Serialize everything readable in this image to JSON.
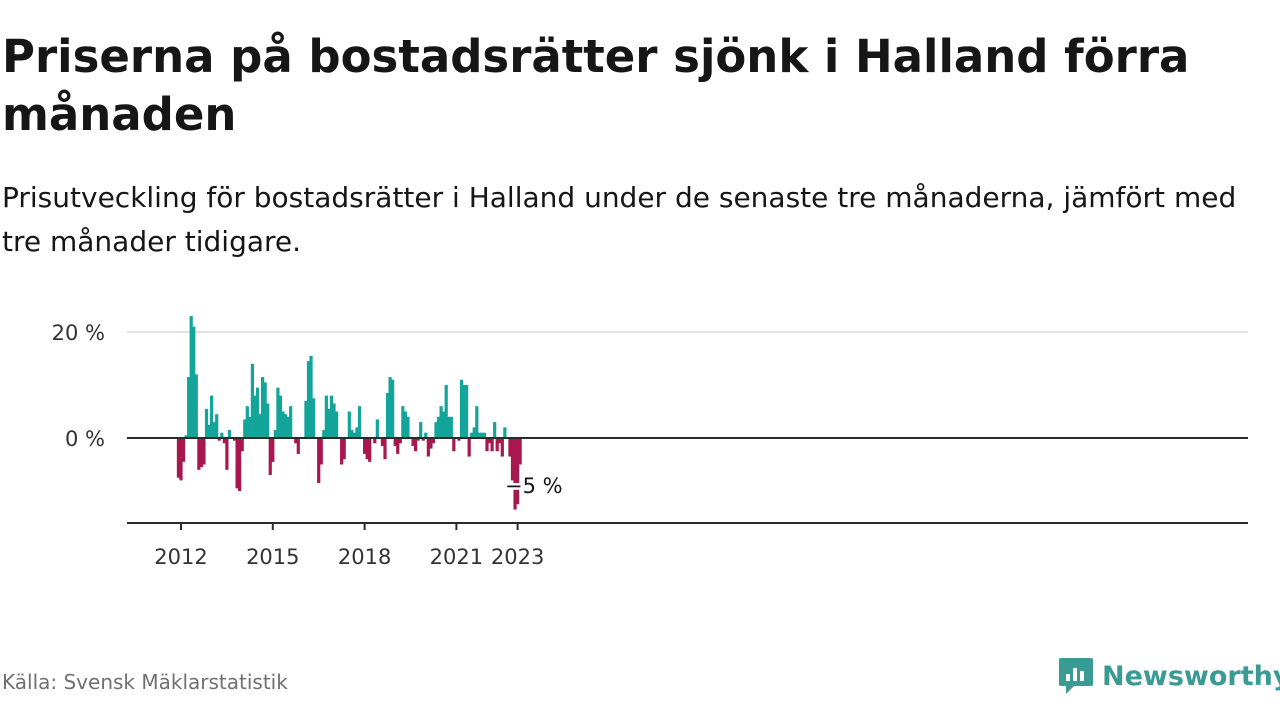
{
  "header": {
    "title": "Priserna på bostadsrätter sjönk i Halland förra månaden",
    "subtitle": "Prisutveckling för bostadsrätter i Halland under de senaste tre månaderna, jämfört med tre månader tidigare."
  },
  "footer": {
    "source": "Källa: Svensk Mäklarstatistik",
    "brand": "Newsworthy"
  },
  "colors": {
    "positive": "#13a49a",
    "negative": "#a8174f",
    "axis": "#2b2b2b",
    "grid": "#d9d9d9",
    "brand": "#3a9a94"
  },
  "chart_data": {
    "type": "bar",
    "title": "",
    "xlabel": "",
    "ylabel": "",
    "ylim": [
      -16,
      23
    ],
    "y_ticks": [
      {
        "value": 0,
        "label": "0 %"
      },
      {
        "value": 20,
        "label": "20 %"
      }
    ],
    "x_ticks": [
      {
        "date": "2012-01",
        "label": "2012"
      },
      {
        "date": "2015-01",
        "label": "2015"
      },
      {
        "date": "2018-01",
        "label": "2018"
      },
      {
        "date": "2021-01",
        "label": "2021"
      },
      {
        "date": "2023-01",
        "label": "2023"
      }
    ],
    "annotation": {
      "date": "2022-12",
      "label": "−5 %"
    },
    "grid": "horizontal",
    "series": [
      {
        "start": "2011-12",
        "frequency": "monthly",
        "values": [
          -7.5,
          -8,
          -4.5,
          0.5,
          11.5,
          23,
          21,
          12,
          -6,
          -5.5,
          -5,
          5.5,
          2.5,
          8,
          3,
          4.5,
          -0.5,
          1,
          -1,
          -6,
          1.5,
          0,
          -0.5,
          -9.5,
          -10,
          -2.5,
          3.5,
          6,
          4,
          14,
          8,
          9.5,
          4.5,
          11.5,
          10.5,
          6.5,
          -7,
          -4.5,
          1.5,
          9.5,
          8,
          5,
          4.5,
          4,
          6,
          0,
          -1,
          -3,
          0,
          0,
          7,
          14.5,
          15.5,
          7.5,
          0,
          -8.5,
          -5,
          1.5,
          8,
          5.5,
          8,
          6.5,
          5,
          0,
          -5,
          -4,
          0,
          5,
          1.5,
          1,
          2,
          6,
          0,
          -3,
          -4,
          -4.5,
          0,
          -1,
          3.5,
          0,
          -1.5,
          -4,
          8.5,
          11.5,
          11,
          -1.5,
          -3,
          -1,
          6,
          5,
          4,
          0,
          -1.5,
          -2.5,
          -0.5,
          3,
          -0.5,
          1,
          -3.5,
          -2,
          -1,
          3,
          4,
          6,
          5,
          10,
          4,
          4,
          -2.5,
          0,
          -0.5,
          11,
          10,
          10,
          -3.5,
          1,
          2,
          6,
          1,
          1,
          1,
          -2.5,
          -1,
          -2.5,
          3,
          -2.5,
          -1,
          -3.5,
          2,
          0,
          -3.5,
          -8,
          -13.5,
          -12.5,
          -5
        ]
      }
    ]
  }
}
